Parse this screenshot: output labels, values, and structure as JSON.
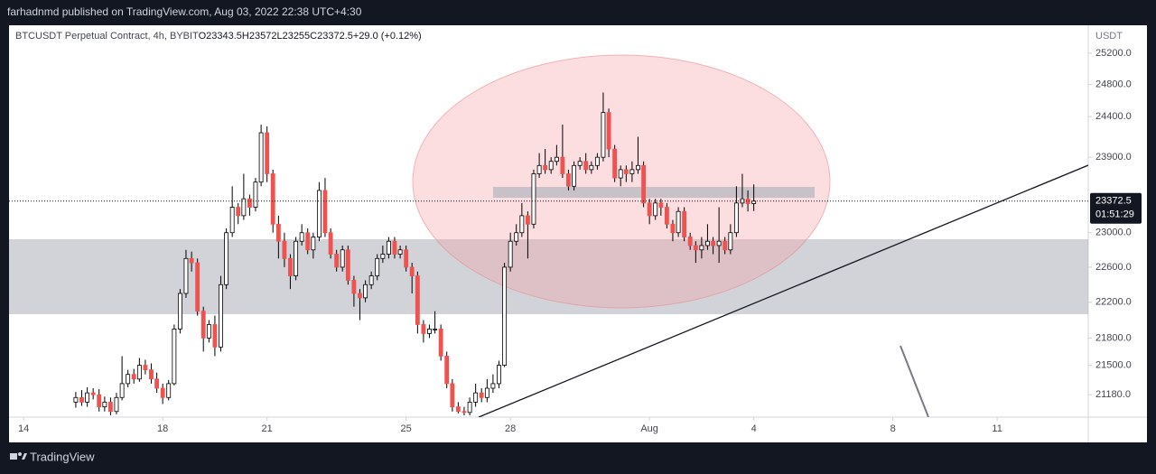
{
  "header": "farhadnmd published on TradingView.com, Aug 03, 2022 22:38 UTC+4:30",
  "footer": "TradingView",
  "chart_data": {
    "type": "candlestick",
    "symbol": "BTCUSDT Perpetual Contract, 4h, BYBIT",
    "ohlc_labels": [
      "O",
      "H",
      "L",
      "C"
    ],
    "change": "+29.0 (+0.12%)",
    "countdown": "01:51:29",
    "y_unit": "USDT",
    "log_y": true,
    "up_color": "#ffffff",
    "down_color": "#ef5350",
    "wick_color": "#000000",
    "xlim": [
      -0.42,
      30.62
    ],
    "xticks": [
      {
        "value": 0,
        "label": "14"
      },
      {
        "value": 4,
        "label": "18"
      },
      {
        "value": 7,
        "label": "21"
      },
      {
        "value": 11,
        "label": "25"
      },
      {
        "value": 14,
        "label": "28"
      },
      {
        "value": 18,
        "label": "Aug"
      },
      {
        "value": 21,
        "label": "4"
      },
      {
        "value": 25,
        "label": "8"
      },
      {
        "value": 28,
        "label": "11"
      }
    ],
    "ylim": [
      20940,
      25560
    ],
    "yticks": [
      {
        "value": 21180,
        "label": "21180.0"
      },
      {
        "value": 21500,
        "label": "21500.0"
      },
      {
        "value": 21800,
        "label": "21800.0"
      },
      {
        "value": 22200,
        "label": "22200.0"
      },
      {
        "value": 22600,
        "label": "22600.0"
      },
      {
        "value": 23000,
        "label": "23000.0"
      },
      {
        "value": 23900,
        "label": "23900.0"
      },
      {
        "value": 24400,
        "label": "24400.0"
      },
      {
        "value": 24800,
        "label": "24800.0"
      },
      {
        "value": 25200,
        "label": "25200.0"
      }
    ],
    "x": [
      1.5,
      1.67,
      1.83,
      2,
      2.17,
      2.33,
      2.5,
      2.67,
      2.83,
      3,
      3.17,
      3.33,
      3.5,
      3.67,
      3.83,
      4,
      4.17,
      4.33,
      4.5,
      4.67,
      4.83,
      5,
      5.17,
      5.33,
      5.5,
      5.67,
      5.83,
      6,
      6.17,
      6.33,
      6.5,
      6.67,
      6.83,
      7,
      7.17,
      7.33,
      7.5,
      7.67,
      7.83,
      8,
      8.17,
      8.33,
      8.5,
      8.67,
      8.83,
      9,
      9.17,
      9.33,
      9.5,
      9.67,
      9.83,
      10,
      10.17,
      10.33,
      10.5,
      10.67,
      10.83,
      11,
      11.17,
      11.33,
      11.5,
      11.67,
      11.83,
      12,
      12.17,
      12.33,
      12.5,
      12.67,
      12.83,
      13,
      13.17,
      13.33,
      13.5,
      13.67,
      13.83,
      14,
      14.17,
      14.33,
      14.5,
      14.67,
      14.83,
      15,
      15.17,
      15.33,
      15.5,
      15.67,
      15.83,
      16,
      16.17,
      16.33,
      16.5,
      16.67,
      16.83,
      17,
      17.17,
      17.33,
      17.5,
      17.67,
      17.83,
      18,
      18.17,
      18.33,
      18.5,
      18.67,
      18.83,
      19,
      19.17,
      19.33,
      19.5,
      19.67,
      19.83,
      20,
      20.17,
      20.33,
      20.5,
      20.67,
      20.83,
      21
    ],
    "open": [
      21100,
      21150,
      21100,
      21200,
      21180,
      21050,
      21100,
      21000,
      21150,
      21300,
      21400,
      21350,
      21500,
      21450,
      21350,
      21250,
      21150,
      21300,
      21900,
      22300,
      22700,
      22650,
      22100,
      21800,
      21950,
      21700,
      22400,
      23000,
      23300,
      23200,
      23400,
      23300,
      23600,
      24200,
      23700,
      23100,
      22900,
      22700,
      22500,
      22900,
      23000,
      22800,
      22950,
      23500,
      23000,
      22750,
      22600,
      22800,
      22450,
      22300,
      22250,
      22400,
      22500,
      22700,
      22750,
      22900,
      22750,
      22800,
      22600,
      22500,
      21950,
      21850,
      21900,
      21900,
      21600,
      21300,
      21050,
      21000,
      20990,
      21100,
      21200,
      21150,
      21250,
      21300,
      21500,
      22600,
      22900,
      23000,
      23200,
      23100,
      23700,
      23800,
      23750,
      23850,
      23900,
      23700,
      23550,
      23800,
      23850,
      23750,
      23800,
      23900,
      24450,
      24000,
      23650,
      23750,
      23700,
      23750,
      23800,
      23350,
      23200,
      23350,
      23300,
      23100,
      23000,
      23250,
      22950,
      22850,
      22800,
      22850,
      22900,
      22850,
      22900,
      22800,
      23000,
      23350,
      23400,
      23343.5
    ],
    "high": [
      21210,
      21230,
      21260,
      21250,
      21240,
      21160,
      21150,
      21200,
      21600,
      21450,
      21460,
      21580,
      21560,
      21520,
      21420,
      21300,
      21340,
      21950,
      22350,
      22800,
      22780,
      22700,
      22150,
      22000,
      22050,
      22500,
      23050,
      23550,
      23350,
      23700,
      23450,
      23650,
      24300,
      24280,
      23750,
      23200,
      23000,
      22750,
      22950,
      23100,
      23050,
      23000,
      23600,
      23650,
      23050,
      22800,
      22850,
      22850,
      22500,
      22350,
      22450,
      22550,
      22750,
      22850,
      22950,
      22950,
      22850,
      22850,
      22650,
      22550,
      22000,
      21950,
      22100,
      21950,
      21650,
      21350,
      21100,
      21050,
      21150,
      21300,
      21250,
      21350,
      21400,
      21550,
      22650,
      23000,
      23100,
      23350,
      23250,
      23750,
      23950,
      24000,
      23900,
      24050,
      24300,
      23750,
      23850,
      23900,
      23950,
      23850,
      23950,
      24700,
      24500,
      24050,
      23800,
      23800,
      23850,
      24150,
      23850,
      23400,
      23400,
      23400,
      23350,
      23150,
      23300,
      23300,
      23000,
      22900,
      22950,
      23100,
      22950,
      23300,
      22950,
      23100,
      23550,
      23700,
      23500,
      23572
    ],
    "low": [
      21040,
      21060,
      21050,
      21130,
      21000,
      21000,
      20960,
      20970,
      21120,
      21260,
      21300,
      21320,
      21400,
      21300,
      21200,
      21080,
      21120,
      21280,
      21850,
      22250,
      22550,
      22050,
      21650,
      21750,
      21600,
      21650,
      22350,
      22950,
      23100,
      23150,
      23200,
      23250,
      23550,
      23600,
      23000,
      22700,
      22600,
      22350,
      22450,
      22850,
      22750,
      22700,
      22900,
      22950,
      22700,
      22550,
      22550,
      22400,
      22150,
      22000,
      22200,
      22350,
      22450,
      22650,
      22700,
      22700,
      22700,
      22550,
      22300,
      21850,
      21750,
      21800,
      21850,
      21550,
      21250,
      21000,
      20980,
      20960,
      20960,
      21050,
      21100,
      21100,
      21200,
      21250,
      21480,
      22550,
      22850,
      22950,
      22700,
      23050,
      23650,
      23700,
      23700,
      23800,
      23650,
      23500,
      23500,
      23750,
      23700,
      23700,
      23750,
      23850,
      23900,
      23600,
      23550,
      23600,
      23600,
      23700,
      23300,
      23100,
      23150,
      23200,
      23050,
      22900,
      22950,
      22900,
      22800,
      22650,
      22700,
      22800,
      22750,
      22650,
      22750,
      22750,
      22950,
      23300,
      23250,
      23255
    ],
    "close": [
      21150,
      21100,
      21200,
      21180,
      21050,
      21100,
      21000,
      21150,
      21300,
      21400,
      21350,
      21500,
      21450,
      21350,
      21250,
      21150,
      21300,
      21900,
      22300,
      22700,
      22650,
      22100,
      21800,
      21950,
      21700,
      22400,
      23000,
      23300,
      23200,
      23400,
      23300,
      23600,
      24200,
      23700,
      23100,
      22900,
      22700,
      22500,
      22900,
      23000,
      22800,
      22950,
      23500,
      23000,
      22750,
      22600,
      22800,
      22450,
      22300,
      22250,
      22400,
      22500,
      22700,
      22750,
      22900,
      22750,
      22800,
      22600,
      22500,
      21950,
      21850,
      21900,
      21900,
      21600,
      21300,
      21050,
      21000,
      20990,
      21100,
      21200,
      21150,
      21250,
      21300,
      21500,
      22600,
      22900,
      23000,
      23200,
      23100,
      23700,
      23800,
      23750,
      23850,
      23900,
      23700,
      23550,
      23800,
      23850,
      23750,
      23800,
      23900,
      24450,
      24000,
      23650,
      23750,
      23700,
      23750,
      23800,
      23350,
      23200,
      23350,
      23300,
      23100,
      23000,
      23250,
      22950,
      22850,
      22800,
      22850,
      22900,
      22850,
      22900,
      22800,
      23000,
      23350,
      23400,
      23343.5,
      23372.5
    ]
  }
}
